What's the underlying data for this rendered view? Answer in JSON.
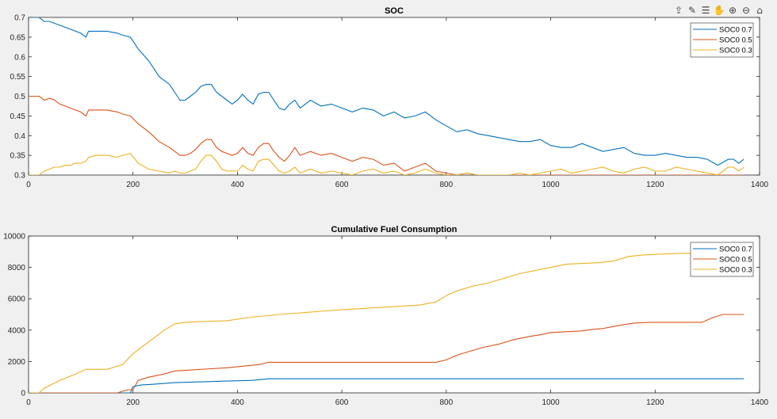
{
  "toolbar": {
    "icons": [
      "export-icon",
      "brush-icon",
      "datatip-icon",
      "pan-icon",
      "zoom-in-icon",
      "zoom-out-icon",
      "home-icon"
    ]
  },
  "colors": {
    "background": "#f0f0f0",
    "axes_bg": "#ffffff",
    "series": [
      "#0072bd",
      "#d95319",
      "#edb120"
    ]
  },
  "chart_data": [
    {
      "type": "line",
      "title": "SOC",
      "xlabel": "",
      "ylabel": "",
      "xlim": [
        0,
        1400
      ],
      "ylim": [
        0.3,
        0.7
      ],
      "xticks": [
        0,
        200,
        400,
        600,
        800,
        1000,
        1200,
        1400
      ],
      "yticks": [
        0.3,
        0.35,
        0.4,
        0.45,
        0.5,
        0.55,
        0.6,
        0.65,
        0.7
      ],
      "xtick_labels": [
        "0",
        "200",
        "400",
        "600",
        "800",
        "1000",
        "1200",
        "1400"
      ],
      "ytick_labels": [
        "0.3",
        "0.35",
        "0.4",
        "0.45",
        "0.5",
        "0.55",
        "0.6",
        "0.65",
        "0.7"
      ],
      "legend": "top-right",
      "series": [
        {
          "name": "SOC0 0.7",
          "x": [
            0,
            20,
            30,
            40,
            50,
            60,
            70,
            80,
            90,
            100,
            110,
            115,
            130,
            150,
            170,
            180,
            195,
            210,
            230,
            250,
            270,
            280,
            290,
            300,
            310,
            320,
            330,
            340,
            350,
            360,
            370,
            380,
            390,
            400,
            410,
            420,
            430,
            440,
            450,
            460,
            470,
            480,
            490,
            500,
            510,
            520,
            540,
            560,
            580,
            600,
            620,
            640,
            660,
            680,
            700,
            720,
            740,
            760,
            780,
            800,
            820,
            840,
            860,
            880,
            900,
            920,
            940,
            960,
            980,
            1000,
            1020,
            1040,
            1060,
            1080,
            1100,
            1120,
            1140,
            1160,
            1180,
            1200,
            1220,
            1240,
            1260,
            1280,
            1300,
            1320,
            1340,
            1350,
            1360,
            1370
          ],
          "values": [
            0.7,
            0.7,
            0.69,
            0.69,
            0.685,
            0.68,
            0.675,
            0.67,
            0.665,
            0.66,
            0.65,
            0.665,
            0.665,
            0.665,
            0.66,
            0.655,
            0.65,
            0.62,
            0.59,
            0.55,
            0.53,
            0.51,
            0.49,
            0.49,
            0.5,
            0.51,
            0.525,
            0.53,
            0.53,
            0.51,
            0.5,
            0.49,
            0.48,
            0.49,
            0.505,
            0.49,
            0.48,
            0.505,
            0.51,
            0.51,
            0.49,
            0.47,
            0.465,
            0.48,
            0.49,
            0.47,
            0.49,
            0.475,
            0.48,
            0.47,
            0.46,
            0.47,
            0.465,
            0.45,
            0.46,
            0.445,
            0.45,
            0.46,
            0.44,
            0.425,
            0.41,
            0.415,
            0.405,
            0.4,
            0.395,
            0.39,
            0.385,
            0.385,
            0.39,
            0.375,
            0.37,
            0.37,
            0.38,
            0.37,
            0.36,
            0.365,
            0.37,
            0.355,
            0.35,
            0.35,
            0.355,
            0.35,
            0.345,
            0.345,
            0.34,
            0.325,
            0.34,
            0.34,
            0.33,
            0.34
          ]
        },
        {
          "name": "SOC0 0.5",
          "x": [
            0,
            20,
            30,
            40,
            50,
            60,
            70,
            80,
            90,
            100,
            110,
            115,
            130,
            150,
            170,
            180,
            195,
            210,
            230,
            250,
            270,
            280,
            290,
            300,
            310,
            320,
            330,
            340,
            350,
            360,
            370,
            380,
            390,
            400,
            410,
            420,
            430,
            440,
            450,
            460,
            470,
            480,
            490,
            500,
            510,
            520,
            540,
            560,
            580,
            600,
            620,
            640,
            660,
            680,
            700,
            720,
            740,
            760,
            780,
            800,
            820,
            840,
            860,
            880,
            900,
            920,
            940,
            960,
            980,
            1000,
            1020,
            1040,
            1060,
            1080,
            1100,
            1120,
            1140,
            1160,
            1180,
            1200,
            1220,
            1240,
            1260,
            1280,
            1300,
            1320,
            1340,
            1350,
            1360,
            1370
          ],
          "values": [
            0.5,
            0.5,
            0.49,
            0.495,
            0.49,
            0.48,
            0.475,
            0.47,
            0.465,
            0.46,
            0.45,
            0.465,
            0.465,
            0.465,
            0.46,
            0.455,
            0.45,
            0.43,
            0.41,
            0.385,
            0.37,
            0.36,
            0.35,
            0.35,
            0.355,
            0.365,
            0.38,
            0.39,
            0.39,
            0.37,
            0.36,
            0.355,
            0.35,
            0.355,
            0.37,
            0.355,
            0.35,
            0.37,
            0.38,
            0.38,
            0.36,
            0.345,
            0.335,
            0.35,
            0.37,
            0.35,
            0.36,
            0.35,
            0.355,
            0.345,
            0.335,
            0.345,
            0.34,
            0.325,
            0.33,
            0.31,
            0.32,
            0.33,
            0.31,
            0.305,
            0.3,
            0.305,
            0.3,
            0.3,
            0.3,
            0.3,
            0.3,
            0.3,
            0.3,
            0.3,
            0.3,
            0.3,
            0.3,
            0.3,
            0.3,
            0.3,
            0.3,
            0.3,
            0.3,
            0.3,
            0.3,
            0.3,
            0.3,
            0.3,
            0.3,
            0.3,
            0.3,
            0.3,
            0.3,
            0.3
          ]
        },
        {
          "name": "SOC0 0.3",
          "x": [
            0,
            20,
            30,
            40,
            50,
            60,
            70,
            80,
            90,
            100,
            110,
            115,
            130,
            150,
            170,
            180,
            195,
            210,
            230,
            250,
            270,
            280,
            290,
            300,
            310,
            320,
            330,
            340,
            350,
            360,
            370,
            380,
            390,
            400,
            410,
            420,
            430,
            440,
            450,
            460,
            470,
            480,
            490,
            500,
            510,
            520,
            540,
            560,
            580,
            600,
            620,
            640,
            660,
            680,
            700,
            720,
            740,
            760,
            780,
            800,
            820,
            840,
            860,
            880,
            900,
            920,
            940,
            960,
            980,
            1000,
            1020,
            1040,
            1060,
            1080,
            1100,
            1120,
            1140,
            1160,
            1180,
            1200,
            1220,
            1240,
            1260,
            1280,
            1300,
            1320,
            1340,
            1350,
            1360,
            1370
          ],
          "values": [
            0.3,
            0.3,
            0.31,
            0.315,
            0.32,
            0.32,
            0.325,
            0.325,
            0.33,
            0.33,
            0.335,
            0.345,
            0.35,
            0.35,
            0.345,
            0.35,
            0.355,
            0.33,
            0.315,
            0.31,
            0.305,
            0.31,
            0.305,
            0.305,
            0.31,
            0.315,
            0.335,
            0.35,
            0.35,
            0.335,
            0.315,
            0.31,
            0.31,
            0.31,
            0.325,
            0.315,
            0.31,
            0.335,
            0.34,
            0.34,
            0.325,
            0.31,
            0.305,
            0.31,
            0.32,
            0.305,
            0.315,
            0.305,
            0.31,
            0.305,
            0.3,
            0.31,
            0.315,
            0.305,
            0.31,
            0.3,
            0.305,
            0.315,
            0.305,
            0.3,
            0.3,
            0.305,
            0.3,
            0.3,
            0.3,
            0.3,
            0.305,
            0.3,
            0.305,
            0.31,
            0.315,
            0.305,
            0.31,
            0.315,
            0.32,
            0.31,
            0.305,
            0.315,
            0.32,
            0.31,
            0.31,
            0.32,
            0.315,
            0.31,
            0.305,
            0.3,
            0.32,
            0.32,
            0.31,
            0.32
          ]
        }
      ]
    },
    {
      "type": "line",
      "title": "Cumulative Fuel Consumption",
      "xlabel": "",
      "ylabel": "",
      "xlim": [
        0,
        1400
      ],
      "ylim": [
        0,
        10000
      ],
      "xticks": [
        0,
        200,
        400,
        600,
        800,
        1000,
        1200,
        1400
      ],
      "yticks": [
        0,
        2000,
        4000,
        6000,
        8000,
        10000
      ],
      "xtick_labels": [
        "0",
        "200",
        "400",
        "600",
        "800",
        "1000",
        "1200",
        "1400"
      ],
      "ytick_labels": [
        "0",
        "2000",
        "4000",
        "6000",
        "8000",
        "10000"
      ],
      "legend": "top-right",
      "series": [
        {
          "name": "SOC0 0.7",
          "x": [
            0,
            180,
            195,
            200,
            215,
            240,
            280,
            330,
            380,
            430,
            460,
            800,
            1370
          ],
          "values": [
            0,
            0,
            0,
            400,
            500,
            550,
            650,
            700,
            750,
            800,
            900,
            900,
            900
          ]
        },
        {
          "name": "SOC0 0.5",
          "x": [
            0,
            170,
            190,
            200,
            210,
            230,
            260,
            280,
            330,
            380,
            410,
            440,
            460,
            780,
            800,
            820,
            840,
            870,
            900,
            930,
            960,
            980,
            1000,
            1030,
            1060,
            1080,
            1100,
            1130,
            1160,
            1190,
            1220,
            1260,
            1290,
            1310,
            1330,
            1370
          ],
          "values": [
            0,
            0,
            200,
            200,
            800,
            1000,
            1200,
            1400,
            1500,
            1600,
            1700,
            1800,
            1950,
            1950,
            2100,
            2400,
            2600,
            2900,
            3100,
            3400,
            3600,
            3700,
            3850,
            3900,
            3950,
            4050,
            4100,
            4300,
            4450,
            4500,
            4500,
            4500,
            4500,
            4800,
            5000,
            5000
          ]
        },
        {
          "name": "SOC0 0.3",
          "x": [
            0,
            20,
            30,
            60,
            90,
            110,
            150,
            180,
            200,
            220,
            240,
            260,
            280,
            300,
            330,
            380,
            420,
            450,
            480,
            520,
            560,
            600,
            650,
            700,
            750,
            780,
            800,
            820,
            850,
            880,
            910,
            940,
            970,
            1000,
            1030,
            1060,
            1090,
            1120,
            1150,
            1180,
            1210,
            1250,
            1300,
            1340,
            1370
          ],
          "values": [
            0,
            0,
            300,
            800,
            1200,
            1500,
            1500,
            1800,
            2500,
            3000,
            3500,
            4000,
            4400,
            4500,
            4550,
            4600,
            4800,
            4900,
            5000,
            5100,
            5200,
            5300,
            5400,
            5500,
            5600,
            5800,
            6200,
            6500,
            6800,
            7000,
            7300,
            7600,
            7800,
            8000,
            8200,
            8250,
            8300,
            8400,
            8700,
            8800,
            8850,
            8900,
            8900,
            8900,
            8900
          ]
        }
      ]
    }
  ]
}
